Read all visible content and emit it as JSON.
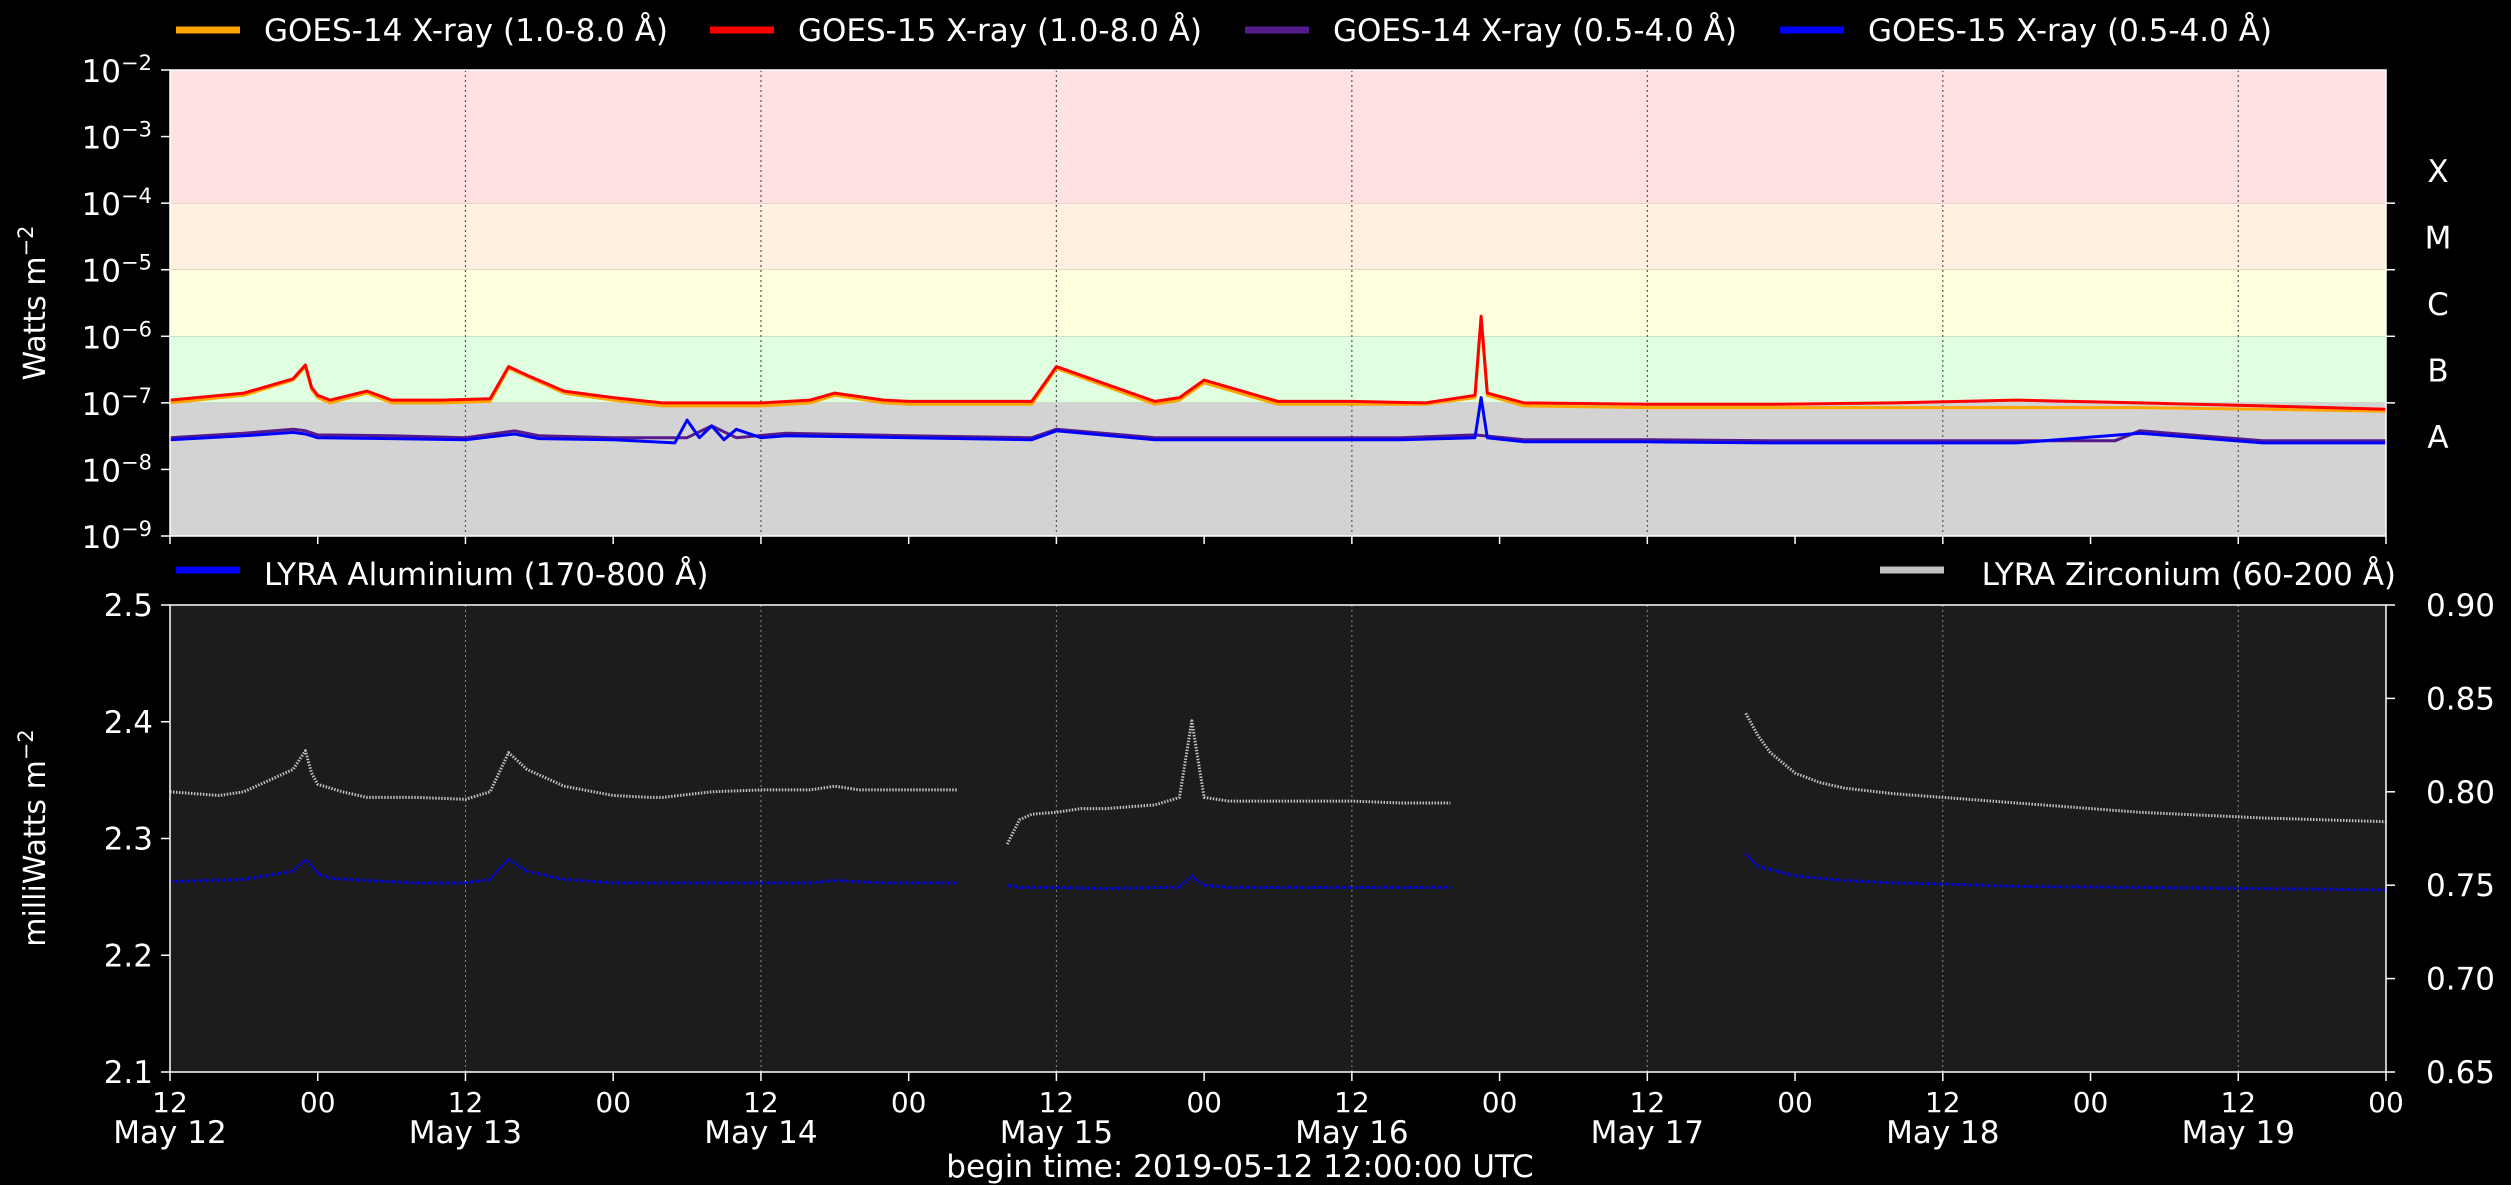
{
  "figure": {
    "footer": "begin time: 2019-05-12 12:00:00 UTC",
    "colors": {
      "background": "#000000",
      "axis": "#ffffff"
    }
  },
  "chart_data": [
    {
      "type": "line",
      "panel": "top",
      "ylabel": "Watts m",
      "ylabel_superscript": "−2",
      "y_scale": "log",
      "ylim": [
        1e-09,
        0.01
      ],
      "y_tick_exponents": [
        "−9",
        "−8",
        "−7",
        "−6",
        "−5",
        "−4",
        "−3",
        "−2"
      ],
      "y_tick_base": "10",
      "xlim_hours": [
        0,
        180
      ],
      "grid": "vertical",
      "legend_placement": "top",
      "flare_classes": [
        {
          "label": "X",
          "lo": 0.0001,
          "hi": 0.01,
          "color": "#ffe0e3"
        },
        {
          "label": "M",
          "lo": 1e-05,
          "hi": 0.0001,
          "color": "#fff0e0"
        },
        {
          "label": "C",
          "lo": 1e-06,
          "hi": 1e-05,
          "color": "#ffffe0"
        },
        {
          "label": "B",
          "lo": 1e-07,
          "hi": 1e-06,
          "color": "#e0ffe0"
        },
        {
          "label": "A",
          "lo": 1e-09,
          "hi": 1e-07,
          "color": "#d3d3d3"
        }
      ],
      "series": [
        {
          "name": "GOES-14 X-ray (1.0-8.0 Å)",
          "color": "#ffa500",
          "x": [
            0,
            6,
            10,
            11,
            11.5,
            12,
            13,
            16,
            18,
            22,
            26,
            27.5,
            29,
            32,
            36,
            40,
            44,
            48,
            52,
            54,
            58,
            60,
            70,
            72,
            80,
            82,
            84,
            90,
            96,
            102,
            106,
            106.5,
            107,
            110,
            120,
            130,
            140,
            150,
            160,
            170,
            180
          ],
          "y": [
            1e-07,
            1.3e-07,
            2.2e-07,
            3.5e-07,
            1.6e-07,
            1.2e-07,
            1e-07,
            1.4e-07,
            1e-07,
            1e-07,
            1.05e-07,
            3.3e-07,
            2.5e-07,
            1.4e-07,
            1.1e-07,
            9e-08,
            9e-08,
            9e-08,
            1e-07,
            1.3e-07,
            1e-07,
            9.5e-08,
            9.5e-08,
            3.3e-07,
            9.5e-08,
            1.1e-07,
            2e-07,
            9.5e-08,
            9.5e-08,
            9.5e-08,
            1.2e-07,
            1.8e-06,
            1.3e-07,
            9e-08,
            8.5e-08,
            8.5e-08,
            8.5e-08,
            8.5e-08,
            8.5e-08,
            8e-08,
            7.5e-08
          ]
        },
        {
          "name": "GOES-15 X-ray (1.0-8.0 Å)",
          "color": "#ff0000",
          "x": [
            0,
            6,
            10,
            11,
            11.5,
            12,
            13,
            16,
            18,
            22,
            26,
            27.5,
            29,
            32,
            36,
            40,
            44,
            48,
            52,
            54,
            58,
            60,
            70,
            72,
            80,
            82,
            84,
            90,
            96,
            102,
            106,
            106.5,
            107,
            110,
            120,
            130,
            140,
            150,
            160,
            170,
            180
          ],
          "y": [
            1.1e-07,
            1.4e-07,
            2.3e-07,
            3.7e-07,
            1.7e-07,
            1.3e-07,
            1.1e-07,
            1.5e-07,
            1.1e-07,
            1.1e-07,
            1.15e-07,
            3.5e-07,
            2.6e-07,
            1.5e-07,
            1.2e-07,
            1e-07,
            1e-07,
            1e-07,
            1.1e-07,
            1.4e-07,
            1.1e-07,
            1.05e-07,
            1.05e-07,
            3.5e-07,
            1.05e-07,
            1.2e-07,
            2.2e-07,
            1.05e-07,
            1.05e-07,
            1e-07,
            1.3e-07,
            2e-06,
            1.4e-07,
            1e-07,
            9.5e-08,
            9.5e-08,
            1e-07,
            1.1e-07,
            1e-07,
            9e-08,
            8e-08
          ]
        },
        {
          "name": "GOES-14 X-ray (0.5-4.0 Å)",
          "color": "#551a8b",
          "x": [
            0,
            6,
            10,
            11,
            12,
            18,
            24,
            28,
            30,
            36,
            42,
            44,
            46,
            50,
            60,
            70,
            72,
            80,
            90,
            100,
            106,
            110,
            120,
            130,
            140,
            150,
            158,
            160,
            170,
            180
          ],
          "y": [
            3e-08,
            3.5e-08,
            4e-08,
            3.8e-08,
            3.3e-08,
            3.2e-08,
            3e-08,
            3.8e-08,
            3.2e-08,
            3e-08,
            3e-08,
            4.5e-08,
            3e-08,
            3.5e-08,
            3.2e-08,
            3e-08,
            4e-08,
            3e-08,
            3e-08,
            3e-08,
            3.3e-08,
            2.8e-08,
            2.8e-08,
            2.7e-08,
            2.7e-08,
            2.7e-08,
            2.7e-08,
            3.8e-08,
            2.7e-08,
            2.7e-08
          ]
        },
        {
          "name": "GOES-15 X-ray (0.5-4.0 Å)",
          "color": "#0000ff",
          "x": [
            0,
            6,
            10,
            11,
            12,
            18,
            24,
            28,
            30,
            36,
            41,
            42,
            43,
            44,
            45,
            46,
            48,
            50,
            60,
            70,
            72,
            80,
            90,
            100,
            106,
            106.5,
            107,
            110,
            120,
            130,
            140,
            150,
            160,
            170,
            180
          ],
          "y": [
            2.8e-08,
            3.2e-08,
            3.6e-08,
            3.4e-08,
            3e-08,
            2.9e-08,
            2.8e-08,
            3.4e-08,
            2.9e-08,
            2.8e-08,
            2.5e-08,
            5.5e-08,
            3e-08,
            4.5e-08,
            2.8e-08,
            4e-08,
            3e-08,
            3.2e-08,
            3e-08,
            2.8e-08,
            3.8e-08,
            2.8e-08,
            2.8e-08,
            2.8e-08,
            3e-08,
            1.2e-07,
            3e-08,
            2.6e-08,
            2.6e-08,
            2.5e-08,
            2.5e-08,
            2.5e-08,
            3.5e-08,
            2.5e-08,
            2.5e-08
          ]
        }
      ]
    },
    {
      "type": "line",
      "panel": "bottom",
      "ylabel": "milliWatts m",
      "ylabel_superscript": "−2",
      "ylim": [
        2.1,
        2.5
      ],
      "y_ticks": [
        "2.1",
        "2.2",
        "2.3",
        "2.4",
        "2.5"
      ],
      "y2lim": [
        0.65,
        0.9
      ],
      "y2_ticks": [
        "0.65",
        "0.70",
        "0.75",
        "0.80",
        "0.85",
        "0.90"
      ],
      "xlim_hours": [
        0,
        180
      ],
      "x_ticks": [
        {
          "hour": 0,
          "label": "12",
          "date": "May 12"
        },
        {
          "hour": 12,
          "label": "00",
          "date": ""
        },
        {
          "hour": 24,
          "label": "12",
          "date": "May 13"
        },
        {
          "hour": 36,
          "label": "00",
          "date": ""
        },
        {
          "hour": 48,
          "label": "12",
          "date": "May 14"
        },
        {
          "hour": 60,
          "label": "00",
          "date": ""
        },
        {
          "hour": 72,
          "label": "12",
          "date": "May 15"
        },
        {
          "hour": 84,
          "label": "00",
          "date": ""
        },
        {
          "hour": 96,
          "label": "12",
          "date": "May 16"
        },
        {
          "hour": 108,
          "label": "00",
          "date": ""
        },
        {
          "hour": 120,
          "label": "12",
          "date": "May 17"
        },
        {
          "hour": 132,
          "label": "00",
          "date": ""
        },
        {
          "hour": 144,
          "label": "12",
          "date": "May 18"
        },
        {
          "hour": 156,
          "label": "00",
          "date": ""
        },
        {
          "hour": 168,
          "label": "12",
          "date": "May 19"
        },
        {
          "hour": 180,
          "label": "00",
          "date": ""
        }
      ],
      "grid": "vertical",
      "legend_placement": "top",
      "panel_color": "#1c1c1c",
      "series": [
        {
          "name": "LYRA Aluminium (170-800 Å)",
          "color": "#0000ff",
          "axis": "left",
          "segments": [
            {
              "x": [
                0,
                6,
                10,
                11,
                12,
                13,
                16,
                20,
                24,
                26,
                27.5,
                29,
                32,
                36,
                40,
                44,
                48,
                52,
                54,
                58,
                64
              ],
              "y": [
                2.263,
                2.265,
                2.272,
                2.282,
                2.27,
                2.266,
                2.264,
                2.262,
                2.262,
                2.265,
                2.282,
                2.272,
                2.265,
                2.262,
                2.262,
                2.262,
                2.262,
                2.262,
                2.264,
                2.262,
                2.262
              ]
            },
            {
              "x": [
                68,
                69,
                72,
                76,
                80,
                82,
                83,
                84,
                86,
                90,
                96,
                100,
                104
              ],
              "y": [
                2.26,
                2.258,
                2.258,
                2.257,
                2.258,
                2.258,
                2.268,
                2.26,
                2.258,
                2.258,
                2.258,
                2.258,
                2.258
              ]
            },
            {
              "x": [
                128,
                129,
                132,
                136,
                140,
                144,
                150,
                160,
                170,
                180
              ],
              "y": [
                2.287,
                2.276,
                2.268,
                2.264,
                2.262,
                2.261,
                2.259,
                2.258,
                2.257,
                2.256
              ]
            }
          ]
        },
        {
          "name": "LYRA Zirconium (60-200 Å)",
          "color": "#c0c0c0",
          "axis": "right",
          "segments": [
            {
              "x": [
                0,
                4,
                6,
                8,
                10,
                11,
                11.5,
                12,
                14,
                16,
                20,
                24,
                26,
                27.5,
                29,
                32,
                36,
                39,
                40,
                44,
                48,
                52,
                54,
                56,
                60,
                64
              ],
              "y": [
                0.8,
                0.798,
                0.8,
                0.806,
                0.812,
                0.822,
                0.81,
                0.804,
                0.8,
                0.797,
                0.797,
                0.796,
                0.8,
                0.821,
                0.812,
                0.803,
                0.798,
                0.797,
                0.797,
                0.8,
                0.801,
                0.801,
                0.803,
                0.801,
                0.801,
                0.801
              ]
            },
            {
              "x": [
                68,
                69,
                70,
                72,
                74,
                76,
                80,
                82,
                83,
                84,
                86,
                90,
                96,
                100,
                104
              ],
              "y": [
                0.772,
                0.785,
                0.788,
                0.789,
                0.791,
                0.791,
                0.793,
                0.797,
                0.838,
                0.797,
                0.795,
                0.795,
                0.795,
                0.794,
                0.794
              ]
            },
            {
              "x": [
                128,
                129,
                130,
                132,
                134,
                136,
                140,
                144,
                150,
                160,
                170,
                180
              ],
              "y": [
                0.842,
                0.83,
                0.821,
                0.81,
                0.805,
                0.802,
                0.799,
                0.797,
                0.794,
                0.789,
                0.786,
                0.784
              ]
            }
          ]
        }
      ]
    }
  ]
}
